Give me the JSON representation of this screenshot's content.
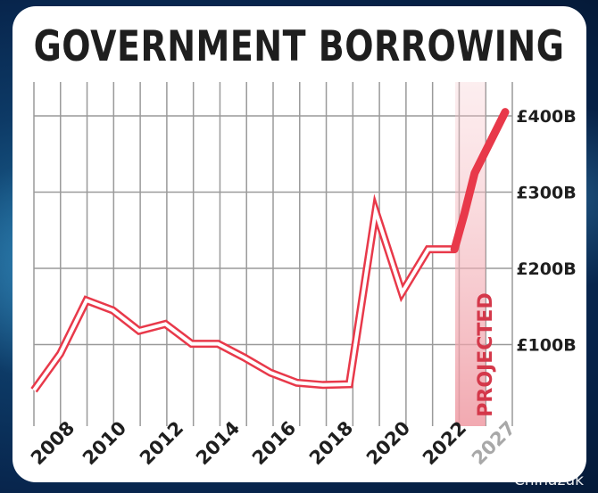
{
  "title": "GOVERNMENT BORROWING",
  "watermark": "Chinazuk",
  "chart_data": {
    "type": "line",
    "title": "GOVERNMENT BORROWING",
    "xlabel": "",
    "ylabel": "",
    "ylim": [
      0,
      460
    ],
    "grid": true,
    "x_tick_labels": [
      "2008",
      "2010",
      "2012",
      "2014",
      "2016",
      "2018",
      "2020",
      "2022",
      "2027"
    ],
    "y_tick_labels": [
      "£100B",
      "£200B",
      "£300B",
      "£400B"
    ],
    "y_ticks": [
      100,
      200,
      300,
      400
    ],
    "projected_label": "PROJECTED",
    "series": [
      {
        "style": "actual",
        "color": "#e8394a",
        "x": [
          2006,
          2007,
          2008,
          2009,
          2010,
          2011,
          2012,
          2013,
          2014,
          2015,
          2016,
          2017,
          2018,
          2019,
          2020,
          2021,
          2022
        ],
        "values": [
          40,
          88,
          158,
          145,
          118,
          127,
          101,
          101,
          83,
          63,
          50,
          47,
          48,
          275,
          168,
          225,
          225
        ]
      },
      {
        "style": "projected",
        "color": "#e8394a",
        "x": [
          2022,
          2023,
          2024,
          2027
        ],
        "values": [
          225,
          272,
          325,
          405
        ]
      }
    ]
  }
}
